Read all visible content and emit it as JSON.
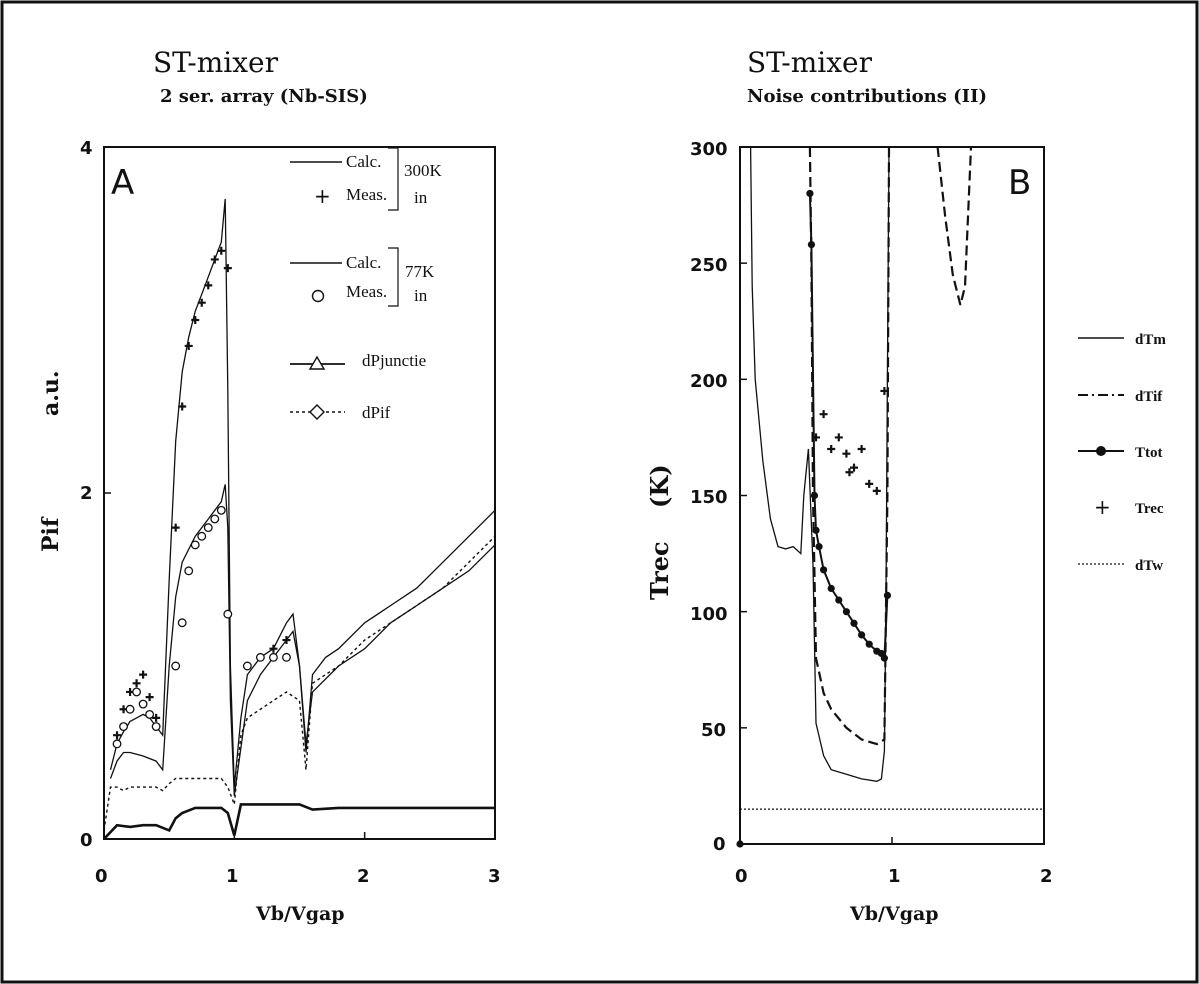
{
  "chart_data": [
    {
      "type": "line",
      "panel_label": "A",
      "title": "ST-mixer",
      "subtitle": "2 ser. array (Nb-SIS)",
      "xlabel": "Vb/Vgap",
      "ylabel": "Pif",
      "ylabel_unit": "a.u.",
      "xlim": [
        0,
        3
      ],
      "ylim": [
        0,
        4
      ],
      "x_ticks": [
        "0",
        "1",
        "2",
        "3"
      ],
      "y_ticks": [
        "0",
        "2",
        "4"
      ],
      "legend": [
        {
          "label": "Calc.",
          "group_label": [
            "300K",
            "in"
          ]
        },
        {
          "label": "Meas."
        },
        {
          "label": "Calc.",
          "group_label": [
            "77K",
            "in"
          ]
        },
        {
          "label": "Meas."
        },
        {
          "label": "dPjunctie"
        },
        {
          "label": "dPif"
        }
      ],
      "series": [
        {
          "marker_line": "calc-300K",
          "x": [
            0.05,
            0.1,
            0.15,
            0.2,
            0.25,
            0.3,
            0.35,
            0.4,
            0.45,
            0.5,
            0.55,
            0.6,
            0.65,
            0.7,
            0.75,
            0.8,
            0.85,
            0.9,
            0.93,
            0.95,
            0.97,
            1.0,
            1.05,
            1.1,
            1.2,
            1.3,
            1.4,
            1.45,
            1.5,
            1.55,
            1.6,
            1.7,
            1.8,
            2.0,
            2.2,
            2.4,
            2.6,
            2.8,
            3.0
          ],
          "y": [
            0.4,
            0.55,
            0.62,
            0.68,
            0.7,
            0.72,
            0.7,
            0.65,
            0.6,
            1.5,
            2.3,
            2.7,
            2.9,
            3.05,
            3.15,
            3.25,
            3.35,
            3.45,
            3.7,
            2.6,
            1.0,
            0.3,
            0.7,
            0.95,
            1.05,
            1.1,
            1.25,
            1.3,
            1.0,
            0.5,
            0.95,
            1.05,
            1.1,
            1.25,
            1.35,
            1.45,
            1.6,
            1.75,
            1.9
          ]
        },
        {
          "marker_line": "meas-300K",
          "x": [
            0.1,
            0.15,
            0.2,
            0.25,
            0.3,
            0.35,
            0.4,
            0.55,
            0.6,
            0.65,
            0.7,
            0.75,
            0.8,
            0.85,
            0.9,
            0.95,
            1.1,
            1.2,
            1.3,
            1.4
          ],
          "y": [
            0.6,
            0.75,
            0.85,
            0.9,
            0.95,
            0.82,
            0.7,
            1.8,
            2.5,
            2.85,
            3.0,
            3.1,
            3.2,
            3.35,
            3.4,
            3.3,
            1.0,
            1.05,
            1.1,
            1.15
          ]
        },
        {
          "marker_line": "calc-77K",
          "x": [
            0.05,
            0.1,
            0.15,
            0.2,
            0.3,
            0.4,
            0.45,
            0.5,
            0.55,
            0.6,
            0.7,
            0.8,
            0.85,
            0.9,
            0.93,
            0.95,
            0.97,
            1.0,
            1.1,
            1.2,
            1.3,
            1.4,
            1.45,
            1.5,
            1.55,
            1.6,
            1.8,
            2.0,
            2.2,
            2.4,
            2.6,
            2.8,
            3.0
          ],
          "y": [
            0.35,
            0.45,
            0.5,
            0.5,
            0.48,
            0.45,
            0.4,
            1.0,
            1.4,
            1.6,
            1.75,
            1.85,
            1.9,
            1.95,
            2.05,
            1.8,
            0.8,
            0.25,
            0.8,
            0.95,
            1.05,
            1.15,
            1.2,
            1.0,
            0.55,
            0.85,
            1.0,
            1.1,
            1.25,
            1.35,
            1.45,
            1.55,
            1.7
          ]
        },
        {
          "marker_line": "meas-77K",
          "x": [
            0.1,
            0.15,
            0.2,
            0.25,
            0.3,
            0.35,
            0.4,
            0.55,
            0.6,
            0.65,
            0.7,
            0.75,
            0.8,
            0.85,
            0.9,
            0.95,
            1.1,
            1.2,
            1.3,
            1.4
          ],
          "y": [
            0.55,
            0.65,
            0.75,
            0.85,
            0.78,
            0.72,
            0.65,
            1.0,
            1.25,
            1.55,
            1.7,
            1.75,
            1.8,
            1.85,
            1.9,
            1.3,
            1.0,
            1.05,
            1.05,
            1.05
          ]
        },
        {
          "marker_line": "dPjunctie",
          "x": [
            0,
            0.1,
            0.2,
            0.3,
            0.4,
            0.5,
            0.55,
            0.6,
            0.7,
            0.8,
            0.9,
            0.95,
            1.0,
            1.05,
            1.1,
            1.3,
            1.5,
            1.6,
            1.8,
            2.0,
            2.2,
            2.4,
            2.6,
            2.8,
            3.0
          ],
          "y": [
            0.0,
            0.08,
            0.07,
            0.08,
            0.08,
            0.05,
            0.12,
            0.15,
            0.18,
            0.18,
            0.18,
            0.15,
            0.02,
            0.2,
            0.2,
            0.2,
            0.2,
            0.17,
            0.18,
            0.18,
            0.18,
            0.18,
            0.18,
            0.18,
            0.18
          ]
        },
        {
          "marker_line": "dPif",
          "x": [
            0,
            0.05,
            0.1,
            0.15,
            0.2,
            0.3,
            0.4,
            0.45,
            0.5,
            0.55,
            0.6,
            0.7,
            0.8,
            0.9,
            0.95,
            1.0,
            1.05,
            1.1,
            1.3,
            1.4,
            1.5,
            1.55,
            1.6,
            1.8,
            2.0,
            2.2,
            2.4,
            2.6,
            2.8,
            3.0
          ],
          "y": [
            0.05,
            0.3,
            0.3,
            0.28,
            0.3,
            0.3,
            0.3,
            0.28,
            0.32,
            0.35,
            0.35,
            0.35,
            0.35,
            0.35,
            0.3,
            0.2,
            0.6,
            0.7,
            0.8,
            0.85,
            0.8,
            0.4,
            0.9,
            1.0,
            1.15,
            1.25,
            1.35,
            1.45,
            1.6,
            1.75
          ]
        }
      ]
    },
    {
      "type": "line",
      "panel_label": "B",
      "title": "ST-mixer",
      "subtitle": "Noise contributions (II)",
      "xlabel": "Vb/Vgap",
      "ylabel": "Trec",
      "ylabel_unit": "(K)",
      "xlim": [
        0,
        2
      ],
      "ylim": [
        0,
        300
      ],
      "x_ticks": [
        "0",
        "1",
        "2"
      ],
      "y_ticks": [
        "0",
        "50",
        "100",
        "150",
        "200",
        "250",
        "300"
      ],
      "series": [
        {
          "name": "dTm",
          "x": [
            0.07,
            0.08,
            0.1,
            0.15,
            0.2,
            0.25,
            0.3,
            0.35,
            0.4,
            0.42,
            0.45,
            0.48,
            0.5,
            0.55,
            0.6,
            0.7,
            0.8,
            0.9,
            0.93,
            0.95,
            0.96,
            0.97,
            0.98
          ],
          "y": [
            300,
            240,
            200,
            165,
            140,
            128,
            127,
            128,
            125,
            150,
            170,
            120,
            52,
            38,
            32,
            30,
            28,
            27,
            28,
            40,
            100,
            200,
            300
          ]
        },
        {
          "name": "dTif",
          "segments": [
            {
              "x": [
                0.46,
                0.47,
                0.48,
                0.5,
                0.55,
                0.6,
                0.7,
                0.8,
                0.9,
                0.95,
                0.97,
                0.98
              ],
              "y": [
                300,
                250,
                150,
                80,
                65,
                58,
                50,
                45,
                43,
                45,
                150,
                300
              ]
            },
            {
              "x": [
                1.3,
                1.35,
                1.4,
                1.45,
                1.48,
                1.5,
                1.52
              ],
              "y": [
                300,
                270,
                245,
                232,
                240,
                270,
                300
              ]
            }
          ]
        },
        {
          "name": "Ttot",
          "x": [
            0.46,
            0.47,
            0.49,
            0.5,
            0.52,
            0.55,
            0.6,
            0.65,
            0.7,
            0.75,
            0.8,
            0.85,
            0.9,
            0.93,
            0.95,
            0.97
          ],
          "y": [
            280,
            258,
            150,
            135,
            128,
            118,
            110,
            105,
            100,
            95,
            90,
            86,
            83,
            82,
            80,
            107
          ]
        },
        {
          "name": "Trec",
          "x": [
            0.5,
            0.55,
            0.6,
            0.65,
            0.7,
            0.72,
            0.75,
            0.8,
            0.85,
            0.9,
            0.95
          ],
          "y": [
            175,
            185,
            170,
            175,
            168,
            160,
            162,
            170,
            155,
            152,
            195
          ]
        },
        {
          "name": "dTw",
          "x": [
            0,
            2
          ],
          "y": [
            15,
            15
          ]
        }
      ],
      "legend": [
        "dTm",
        "dTif",
        "Ttot",
        "Trec",
        "dTw"
      ]
    }
  ]
}
